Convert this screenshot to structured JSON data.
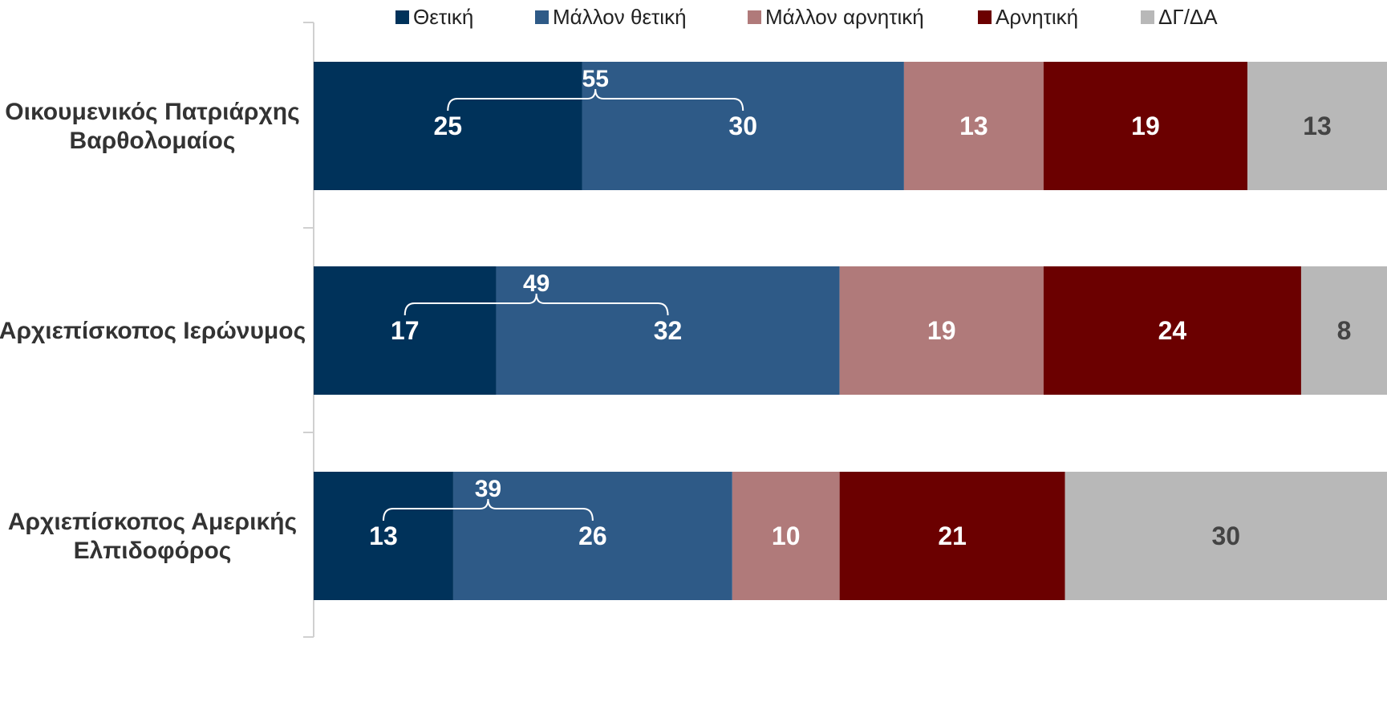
{
  "chart_data": {
    "type": "bar",
    "orientation": "horizontal",
    "stacked": true,
    "categories": [
      [
        "Οικουμενικός Πατριάρχης",
        "Βαρθολομαίος"
      ],
      [
        "Αρχιεπίσκοπος Ιερώνυμος"
      ],
      [
        "Αρχιεπίσκοπος Αμερικής",
        "Ελπιδοφόρος"
      ]
    ],
    "series": [
      {
        "name": "Θετική",
        "color": "#00325a",
        "label_color": "#ffffff",
        "values": [
          25,
          17,
          13
        ]
      },
      {
        "name": "Μάλλον θετική",
        "color": "#2e5a87",
        "label_color": "#ffffff",
        "values": [
          30,
          32,
          26
        ]
      },
      {
        "name": "Μάλλον αρνητική",
        "color": "#b07a7a",
        "label_color": "#ffffff",
        "values": [
          13,
          19,
          10
        ]
      },
      {
        "name": "Αρνητική",
        "color": "#6b0000",
        "label_color": "#ffffff",
        "values": [
          19,
          24,
          21
        ]
      },
      {
        "name": "ΔΓ/ΔΑ",
        "color": "#b8b8b8",
        "label_color": "#444444",
        "values": [
          13,
          8,
          30
        ]
      }
    ],
    "positive_totals": [
      55,
      49,
      39
    ],
    "xlim": [
      0,
      100
    ],
    "legend_position": "top",
    "grid": false,
    "title": "",
    "xlabel": "",
    "ylabel": ""
  }
}
